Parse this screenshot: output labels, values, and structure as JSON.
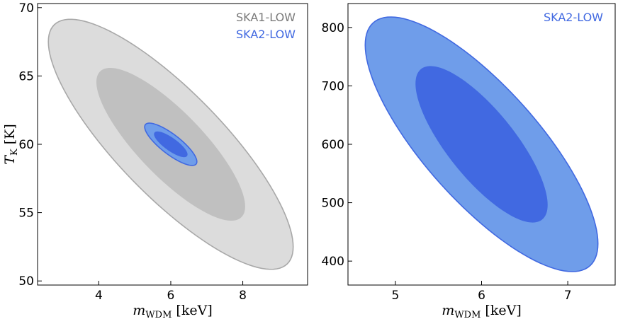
{
  "chart_data": [
    {
      "type": "contour",
      "xlabel": {
        "main": "m",
        "sub": "WDM",
        "unit": " [keV]"
      },
      "ylabel": {
        "main": "T",
        "sub": "K",
        "unit": " [K]"
      },
      "xlim": [
        2.3,
        9.8
      ],
      "ylim": [
        49.7,
        70.3
      ],
      "xticks": [
        4,
        6,
        8
      ],
      "yticks": [
        50,
        55,
        60,
        65,
        70
      ],
      "legend": [
        {
          "label": "SKA1-LOW",
          "color": "#7a7a7a"
        },
        {
          "label": "SKA2-LOW",
          "color": "#4169e1"
        }
      ],
      "legend_position": "top-right",
      "series": [
        {
          "name": "SKA1-LOW",
          "contours": [
            {
              "level": "outer",
              "center": [
                6.0,
                60.0
              ],
              "x_range": [
                2.45,
                9.25
              ],
              "y_range": [
                50.85,
                69.15
              ],
              "fill": "#dcdcdc",
              "edge": "#a8a8a8"
            },
            {
              "level": "inner",
              "center": [
                6.0,
                60.0
              ],
              "x_range": [
                3.95,
                8.05
              ],
              "y_range": [
                54.45,
                65.55
              ],
              "fill": "#c0c0c0",
              "edge": "#c0c0c0"
            }
          ]
        },
        {
          "name": "SKA2-LOW",
          "contours": [
            {
              "level": "outer",
              "center": [
                6.0,
                60.0
              ],
              "x_range": [
                5.3,
                6.75
              ],
              "y_range": [
                58.4,
                61.5
              ],
              "fill": "#6f9dea",
              "edge": "#4169e1"
            },
            {
              "level": "inner",
              "center": [
                6.0,
                60.0
              ],
              "x_range": [
                5.55,
                6.45
              ],
              "y_range": [
                59.1,
                60.9
              ],
              "fill": "#4169e1",
              "edge": "#4169e1"
            }
          ]
        }
      ]
    },
    {
      "type": "contour",
      "xlabel": {
        "main": "m",
        "sub": "WDM",
        "unit": " [keV]"
      },
      "ylabel": null,
      "xlim": [
        4.45,
        7.55
      ],
      "ylim": [
        359,
        841
      ],
      "xticks": [
        5,
        6,
        7
      ],
      "yticks": [
        400,
        500,
        600,
        700,
        800
      ],
      "legend": [
        {
          "label": "SKA2-LOW",
          "color": "#4169e1"
        }
      ],
      "legend_position": "top-right",
      "series": [
        {
          "name": "SKA2-LOW",
          "contours": [
            {
              "level": "outer",
              "center": [
                6.0,
                600.0
              ],
              "x_range": [
                4.65,
                7.35
              ],
              "y_range": [
                382,
                818
              ],
              "fill": "#6f9dea",
              "edge": "#4169e1"
            },
            {
              "level": "inner",
              "center": [
                6.0,
                600.0
              ],
              "x_range": [
                5.33,
                6.85
              ],
              "y_range": [
                467,
                733
              ],
              "fill": "#4169e1",
              "edge": "#4169e1"
            }
          ]
        }
      ]
    }
  ]
}
